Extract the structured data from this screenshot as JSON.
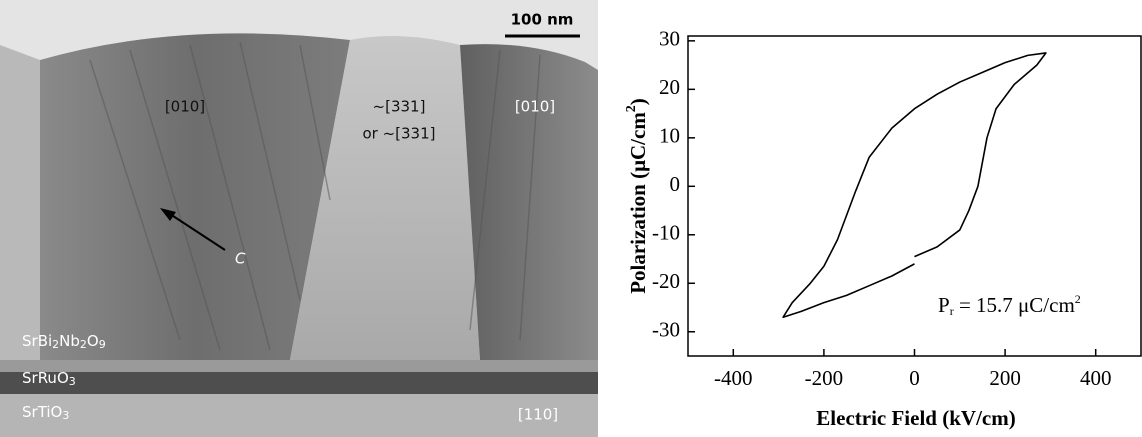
{
  "image": {
    "scale_bar": "100 nm",
    "orientation_labels": [
      "[010]",
      "~[331]",
      "or ~[331]",
      "[010]",
      "[110]"
    ],
    "arrow_label": "C",
    "layers": [
      [
        "SrBi",
        "2",
        "Nb",
        "2",
        "O",
        "9"
      ],
      [
        "SrRuO",
        "3"
      ],
      [
        "SrTiO",
        "3"
      ]
    ]
  },
  "chart_data": {
    "type": "line",
    "x": [
      0,
      -50,
      -100,
      -150,
      -200,
      -250,
      -290,
      -270,
      -230,
      -200,
      -170,
      -150,
      -130,
      -100,
      -50,
      0,
      50,
      100,
      150,
      200,
      250,
      290,
      270,
      220,
      180,
      160,
      150,
      140,
      120,
      100,
      50,
      0
    ],
    "values": [
      -16,
      -18.5,
      -20.5,
      -22.5,
      -24,
      -25.8,
      -27,
      -24,
      -20,
      -16.5,
      -11,
      -6,
      -1,
      6,
      12,
      16,
      19,
      21.5,
      23.5,
      25.5,
      27,
      27.5,
      25,
      21,
      16,
      10,
      5,
      0,
      -5,
      -9,
      -12.5,
      -14.5
    ],
    "color": "#000000",
    "xlim": [
      -500,
      500
    ],
    "ylim": [
      -35,
      31
    ],
    "xticks": [
      -400,
      -200,
      0,
      200,
      400
    ],
    "yticks": [
      -30,
      -20,
      -10,
      0,
      10,
      20,
      30
    ],
    "xlabel": "Electric Field (kV/cm)",
    "ylabel": [
      "Polarization (μC/cm",
      "2",
      ")"
    ],
    "annotation": [
      "P",
      "r",
      " = 15.7 μC/cm",
      "2"
    ]
  }
}
